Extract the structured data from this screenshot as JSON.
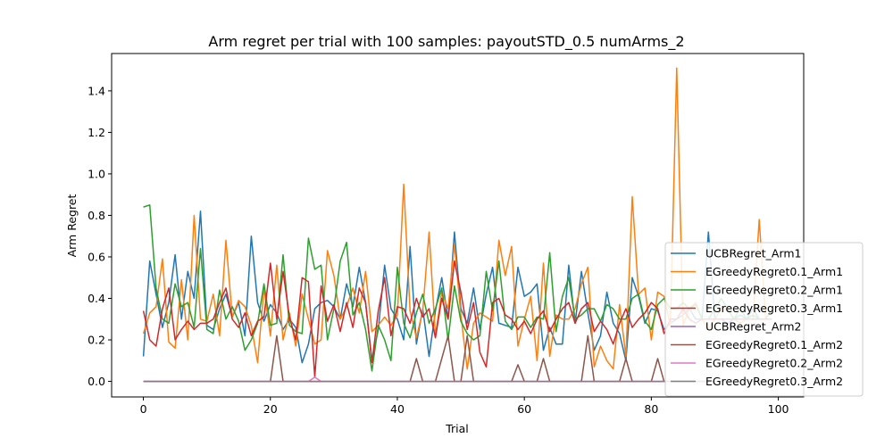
{
  "chart_data": {
    "type": "line",
    "title": "Arm regret per trial with 100 samples: payoutSTD_0.5 numArms_2",
    "xlabel": "Trial",
    "ylabel": "Arm Regret",
    "xlim": [
      -5,
      104
    ],
    "ylim": [
      -0.075,
      1.58
    ],
    "xticks": [
      0,
      20,
      40,
      60,
      80,
      100
    ],
    "yticks": [
      0.0,
      0.2,
      0.4,
      0.6,
      0.8,
      1.0,
      1.2,
      1.4
    ],
    "ytick_labels": [
      "0.0",
      "0.2",
      "0.4",
      "0.6",
      "0.8",
      "1.0",
      "1.2",
      "1.4"
    ],
    "grid": false,
    "legend_position": "lower-right",
    "x": [
      0,
      1,
      2,
      3,
      4,
      5,
      6,
      7,
      8,
      9,
      10,
      11,
      12,
      13,
      14,
      15,
      16,
      17,
      18,
      19,
      20,
      21,
      22,
      23,
      24,
      25,
      26,
      27,
      28,
      29,
      30,
      31,
      32,
      33,
      34,
      35,
      36,
      37,
      38,
      39,
      40,
      41,
      42,
      43,
      44,
      45,
      46,
      47,
      48,
      49,
      50,
      51,
      52,
      53,
      54,
      55,
      56,
      57,
      58,
      59,
      60,
      61,
      62,
      63,
      64,
      65,
      66,
      67,
      68,
      69,
      70,
      71,
      72,
      73,
      74,
      75,
      76,
      77,
      78,
      79,
      80,
      81,
      82,
      83,
      84,
      85,
      86,
      87,
      88,
      89,
      90,
      91,
      92,
      93,
      94,
      95,
      96,
      97,
      98,
      99
    ],
    "series": [
      {
        "name": "UCBRegret_Arm1",
        "color": "#1f77b4",
        "values": [
          0.12,
          0.58,
          0.42,
          0.26,
          0.38,
          0.61,
          0.3,
          0.53,
          0.4,
          0.82,
          0.27,
          0.25,
          0.35,
          0.42,
          0.31,
          0.38,
          0.22,
          0.7,
          0.38,
          0.29,
          0.37,
          0.33,
          0.25,
          0.3,
          0.26,
          0.09,
          0.18,
          0.35,
          0.38,
          0.39,
          0.36,
          0.3,
          0.47,
          0.36,
          0.55,
          0.38,
          0.1,
          0.25,
          0.56,
          0.35,
          0.3,
          0.2,
          0.65,
          0.18,
          0.35,
          0.12,
          0.34,
          0.5,
          0.3,
          0.72,
          0.35,
          0.28,
          0.45,
          0.25,
          0.42,
          0.55,
          0.28,
          0.27,
          0.26,
          0.55,
          0.41,
          0.43,
          0.47,
          0.15,
          0.26,
          0.18,
          0.18,
          0.56,
          0.28,
          0.53,
          0.33,
          0.15,
          0.22,
          0.43,
          0.28,
          0.23,
          0.1,
          0.5,
          0.41,
          0.28,
          0.35,
          0.34,
          0.25,
          0.28,
          0.3,
          0.32,
          0.35,
          0.3,
          0.3,
          0.72,
          0.3,
          0.3,
          0.28,
          0.3,
          0.32,
          0.3,
          0.35,
          0.3,
          0.3,
          0.3
        ]
      },
      {
        "name": "EGreedyRegret0.1_Arm1",
        "color": "#ff7f0e",
        "values": [
          0.23,
          0.33,
          0.36,
          0.59,
          0.19,
          0.16,
          0.49,
          0.2,
          0.8,
          0.3,
          0.29,
          0.42,
          0.22,
          0.68,
          0.31,
          0.39,
          0.36,
          0.27,
          0.09,
          0.45,
          0.22,
          0.56,
          0.2,
          0.33,
          0.17,
          0.42,
          0.3,
          0.18,
          0.2,
          0.63,
          0.51,
          0.3,
          0.36,
          0.45,
          0.33,
          0.53,
          0.24,
          0.27,
          0.31,
          0.27,
          0.32,
          0.95,
          0.34,
          0.21,
          0.34,
          0.72,
          0.22,
          0.43,
          0.35,
          0.66,
          0.32,
          0.06,
          0.28,
          0.33,
          0.31,
          0.29,
          0.68,
          0.51,
          0.65,
          0.17,
          0.3,
          0.41,
          0.1,
          0.57,
          0.12,
          0.32,
          0.3,
          0.3,
          0.35,
          0.47,
          0.55,
          0.07,
          0.17,
          0.1,
          0.06,
          0.37,
          0.12,
          0.89,
          0.42,
          0.45,
          0.2,
          0.43,
          0.41,
          0.27,
          1.51,
          0.27,
          0.35,
          0.38,
          0.3,
          0.25,
          0.3,
          0.35,
          0.35,
          0.3,
          0.28,
          0.3,
          0.3,
          0.78,
          0.3,
          0.3
        ]
      },
      {
        "name": "EGreedyRegret0.2_Arm1",
        "color": "#2ca02c",
        "values": [
          0.84,
          0.85,
          0.45,
          0.3,
          0.28,
          0.47,
          0.36,
          0.38,
          0.26,
          0.64,
          0.25,
          0.23,
          0.44,
          0.3,
          0.36,
          0.29,
          0.15,
          0.2,
          0.28,
          0.47,
          0.27,
          0.28,
          0.61,
          0.27,
          0.24,
          0.23,
          0.69,
          0.54,
          0.56,
          0.2,
          0.35,
          0.58,
          0.67,
          0.32,
          0.38,
          0.25,
          0.05,
          0.27,
          0.2,
          0.1,
          0.55,
          0.28,
          0.21,
          0.33,
          0.42,
          0.28,
          0.35,
          0.45,
          0.2,
          0.46,
          0.29,
          0.23,
          0.2,
          0.22,
          0.53,
          0.34,
          0.58,
          0.29,
          0.25,
          0.31,
          0.31,
          0.26,
          0.31,
          0.3,
          0.62,
          0.24,
          0.41,
          0.5,
          0.3,
          0.32,
          0.35,
          0.35,
          0.29,
          0.37,
          0.35,
          0.3,
          0.3,
          0.4,
          0.42,
          0.29,
          0.25,
          0.37,
          0.4,
          0.35,
          0.35,
          0.38,
          0.35,
          0.37,
          0.3,
          0.3,
          0.35,
          0.4,
          0.35,
          0.3,
          0.35,
          0.3,
          0.32,
          0.3,
          0.3,
          0.35
        ]
      },
      {
        "name": "EGreedyRegret0.3_Arm1",
        "color": "#d62728",
        "values": [
          0.34,
          0.2,
          0.17,
          0.35,
          0.45,
          0.2,
          0.25,
          0.29,
          0.25,
          0.28,
          0.28,
          0.3,
          0.38,
          0.45,
          0.3,
          0.26,
          0.33,
          0.22,
          0.29,
          0.31,
          0.57,
          0.3,
          0.53,
          0.31,
          0.2,
          0.5,
          0.48,
          0.02,
          0.46,
          0.29,
          0.37,
          0.24,
          0.38,
          0.26,
          0.45,
          0.38,
          0.09,
          0.34,
          0.5,
          0.22,
          0.36,
          0.35,
          0.28,
          0.4,
          0.31,
          0.35,
          0.21,
          0.4,
          0.3,
          0.58,
          0.43,
          0.25,
          0.38,
          0.14,
          0.07,
          0.38,
          0.4,
          0.32,
          0.3,
          0.25,
          0.29,
          0.23,
          0.3,
          0.34,
          0.24,
          0.3,
          0.35,
          0.38,
          0.28,
          0.35,
          0.38,
          0.24,
          0.29,
          0.25,
          0.18,
          0.28,
          0.35,
          0.26,
          0.3,
          0.33,
          0.38,
          0.35,
          0.23,
          0.3,
          0.3,
          0.35,
          0.3,
          0.28,
          0.3,
          0.3,
          0.3,
          0.3,
          0.3,
          0.3,
          0.3,
          0.3,
          0.3,
          0.3,
          0.3,
          0.3
        ]
      },
      {
        "name": "UCBRegret_Arm2",
        "color": "#9467bd",
        "constant": 0.0
      },
      {
        "name": "EGreedyRegret0.1_Arm2",
        "color": "#8c564b",
        "constant": 0.0,
        "spikes": [
          [
            21,
            0.22
          ],
          [
            43,
            0.11
          ],
          [
            47,
            0.11
          ],
          [
            48,
            0.22
          ],
          [
            51,
            0.22
          ],
          [
            59,
            0.08
          ],
          [
            63,
            0.11
          ],
          [
            70,
            0.22
          ],
          [
            76,
            0.11
          ],
          [
            81,
            0.11
          ]
        ]
      },
      {
        "name": "EGreedyRegret0.2_Arm2",
        "color": "#e377c2",
        "constant": 0.0,
        "spikes": [
          [
            27,
            0.02
          ]
        ]
      },
      {
        "name": "EGreedyRegret0.3_Arm2",
        "color": "#7f7f7f",
        "constant": 0.0
      }
    ]
  }
}
